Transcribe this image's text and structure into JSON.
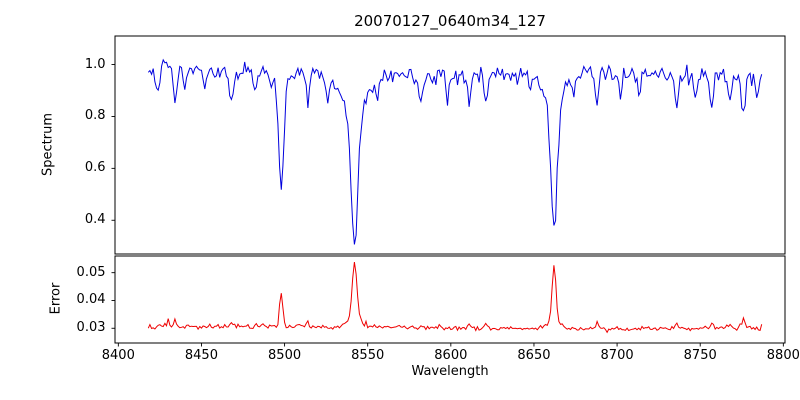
{
  "chart_data": {
    "type": "line",
    "title": "20070127_0640m34_127",
    "xlabel": "Wavelength",
    "xlim": [
      8398,
      8801
    ],
    "x_data_range": [
      8418,
      8787
    ],
    "x_step": 1.0,
    "xticks": [
      8400,
      8450,
      8500,
      8550,
      8600,
      8650,
      8700,
      8750,
      8800
    ],
    "grid": false,
    "legend": "none",
    "axes_color": "#000000",
    "background_color": "#ffffff",
    "subplots": [
      {
        "ylabel": "Spectrum",
        "color": "#0000dd",
        "ylim": [
          0.27,
          1.11
        ],
        "yticks": [
          0.4,
          0.6,
          0.8,
          1.0
        ],
        "ytick_labels": [
          "0.4",
          "0.6",
          "0.8",
          "1.0"
        ],
        "continuum_level": 0.965,
        "noise_sigma": 0.016,
        "absorption_lines": [
          {
            "center": 8424,
            "depth": 0.09,
            "sigma": 1.0
          },
          {
            "center": 8434,
            "depth": 0.12,
            "sigma": 1.0
          },
          {
            "center": 8440,
            "depth": 0.07,
            "sigma": 0.9
          },
          {
            "center": 8452,
            "depth": 0.06,
            "sigma": 0.9
          },
          {
            "center": 8468,
            "depth": 0.14,
            "sigma": 1.1
          },
          {
            "center": 8482,
            "depth": 0.08,
            "sigma": 0.9
          },
          {
            "center": 8498.0,
            "depth": 0.41,
            "sigma": 1.5,
            "wing_depth": 0.05,
            "wing_sigma": 5
          },
          {
            "center": 8514,
            "depth": 0.12,
            "sigma": 1.0
          },
          {
            "center": 8526,
            "depth": 0.09,
            "sigma": 0.9
          },
          {
            "center": 8542.1,
            "depth": 0.5,
            "sigma": 2.0,
            "wing_depth": 0.15,
            "wing_sigma": 7
          },
          {
            "center": 8556,
            "depth": 0.08,
            "sigma": 0.9
          },
          {
            "center": 8582,
            "depth": 0.1,
            "sigma": 1.0
          },
          {
            "center": 8598,
            "depth": 0.08,
            "sigma": 0.9
          },
          {
            "center": 8611,
            "depth": 0.11,
            "sigma": 1.0
          },
          {
            "center": 8621,
            "depth": 0.13,
            "sigma": 1.0
          },
          {
            "center": 8648,
            "depth": 0.08,
            "sigma": 0.9
          },
          {
            "center": 8662.1,
            "depth": 0.47,
            "sigma": 1.8,
            "wing_depth": 0.13,
            "wing_sigma": 6
          },
          {
            "center": 8674,
            "depth": 0.09,
            "sigma": 0.9
          },
          {
            "center": 8688,
            "depth": 0.15,
            "sigma": 1.0
          },
          {
            "center": 8702,
            "depth": 0.09,
            "sigma": 0.9
          },
          {
            "center": 8713,
            "depth": 0.08,
            "sigma": 0.9
          },
          {
            "center": 8736,
            "depth": 0.12,
            "sigma": 1.0
          },
          {
            "center": 8747,
            "depth": 0.08,
            "sigma": 0.9
          },
          {
            "center": 8757,
            "depth": 0.11,
            "sigma": 1.0
          },
          {
            "center": 8768,
            "depth": 0.09,
            "sigma": 0.9
          },
          {
            "center": 8776,
            "depth": 0.15,
            "sigma": 1.1
          },
          {
            "center": 8784,
            "depth": 0.1,
            "sigma": 0.9
          }
        ]
      },
      {
        "ylabel": "Error",
        "color": "#ee0000",
        "ylim": [
          0.0247,
          0.056
        ],
        "yticks": [
          0.03,
          0.04,
          0.05
        ],
        "ytick_labels": [
          "0.03",
          "0.04",
          "0.05"
        ],
        "baseline": 0.0302,
        "noise_sigma": 0.00045,
        "spikes": [
          {
            "center": 8430,
            "peak": 0.0335,
            "sigma": 0.8
          },
          {
            "center": 8434,
            "peak": 0.033,
            "sigma": 0.8
          },
          {
            "center": 8468,
            "peak": 0.0322,
            "sigma": 0.8
          },
          {
            "center": 8498.0,
            "peak": 0.0425,
            "sigma": 1.0
          },
          {
            "center": 8514,
            "peak": 0.0315,
            "sigma": 0.8
          },
          {
            "center": 8542.1,
            "peak": 0.0505,
            "sigma": 1.3
          },
          {
            "center": 8542.1,
            "peak": 0.034,
            "sigma": 4.0
          },
          {
            "center": 8611,
            "peak": 0.0316,
            "sigma": 0.8
          },
          {
            "center": 8621,
            "peak": 0.0316,
            "sigma": 0.8
          },
          {
            "center": 8662.1,
            "peak": 0.05,
            "sigma": 1.1
          },
          {
            "center": 8662.1,
            "peak": 0.0335,
            "sigma": 3.5
          },
          {
            "center": 8688,
            "peak": 0.0325,
            "sigma": 0.9
          },
          {
            "center": 8736,
            "peak": 0.0318,
            "sigma": 0.8
          },
          {
            "center": 8757,
            "peak": 0.032,
            "sigma": 0.8
          },
          {
            "center": 8768,
            "peak": 0.0315,
            "sigma": 0.8
          },
          {
            "center": 8776,
            "peak": 0.033,
            "sigma": 1.0
          }
        ]
      }
    ]
  }
}
